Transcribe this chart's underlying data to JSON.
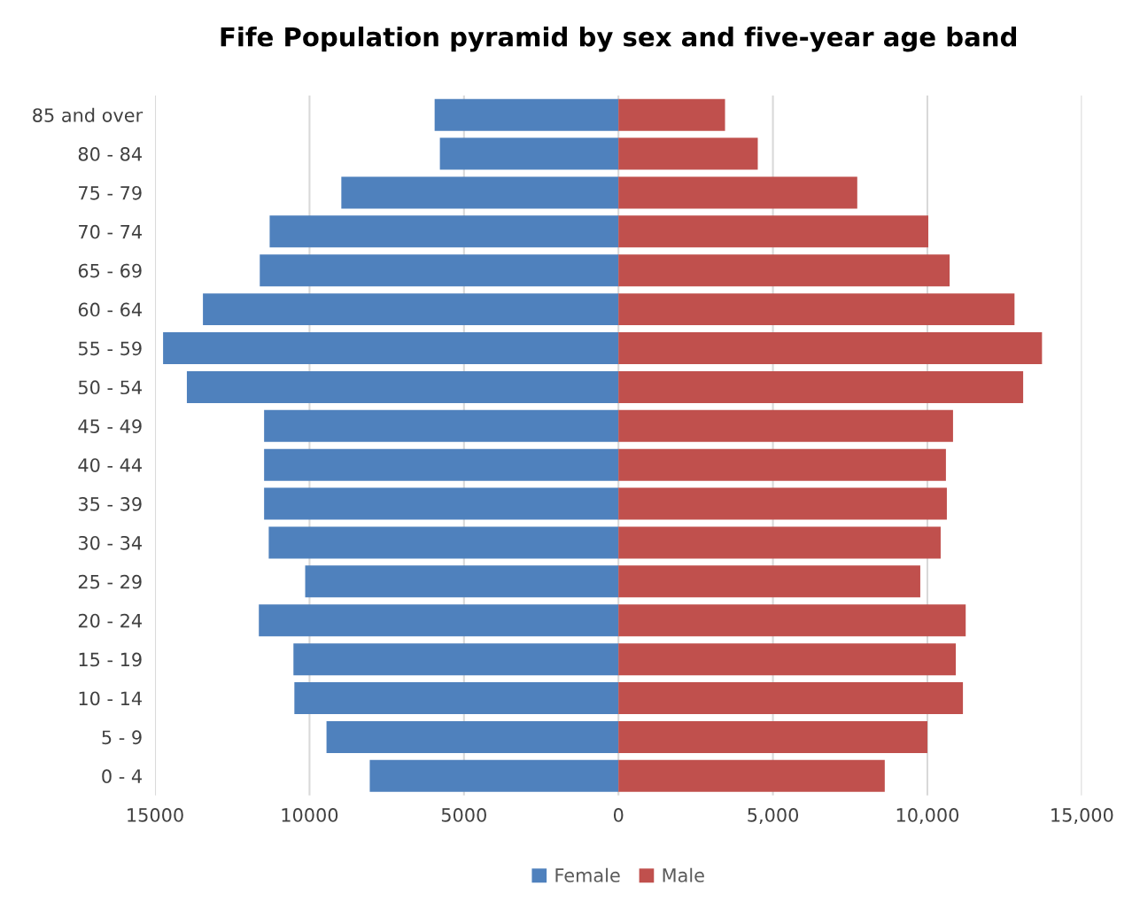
{
  "chart_data": {
    "type": "bar",
    "orientation": "horizontal",
    "title": "Fife Population pyramid by sex and five-year age band",
    "categories": [
      "85 and over",
      "80 - 84",
      "75 - 79",
      "70 - 74",
      "65 - 69",
      "60 - 64",
      "55 - 59",
      "50 - 54",
      "45 - 49",
      "40 - 44",
      "35 - 39",
      "30 - 34",
      "25 - 29",
      "20 - 24",
      "15 - 19",
      "10 - 14",
      "5 - 9",
      "0 - 4"
    ],
    "series": [
      {
        "name": "Female",
        "color": "#4f81bd",
        "values": [
          -5950,
          -5780,
          -8970,
          -11290,
          -11610,
          -13450,
          -14740,
          -13970,
          -11470,
          -11470,
          -11470,
          -11320,
          -10140,
          -11640,
          -10520,
          -10490,
          -9450,
          -8050
        ]
      },
      {
        "name": "Male",
        "color": "#c0504d",
        "values": [
          3450,
          4510,
          7730,
          10030,
          10720,
          12820,
          13710,
          13100,
          10830,
          10600,
          10630,
          10430,
          9770,
          11240,
          10920,
          11150,
          10000,
          8620
        ]
      }
    ],
    "xlim": [
      -15000,
      15000
    ],
    "xticks": [
      {
        "value": -15000,
        "label": "15000"
      },
      {
        "value": -10000,
        "label": "10000"
      },
      {
        "value": -5000,
        "label": "5000"
      },
      0,
      {
        "value": 5000,
        "label": "5,000"
      },
      {
        "value": 10000,
        "label": "10,000"
      },
      {
        "value": 15000,
        "label": "15,000"
      }
    ],
    "stacked": true,
    "grid": "x",
    "legend": "bottom"
  }
}
